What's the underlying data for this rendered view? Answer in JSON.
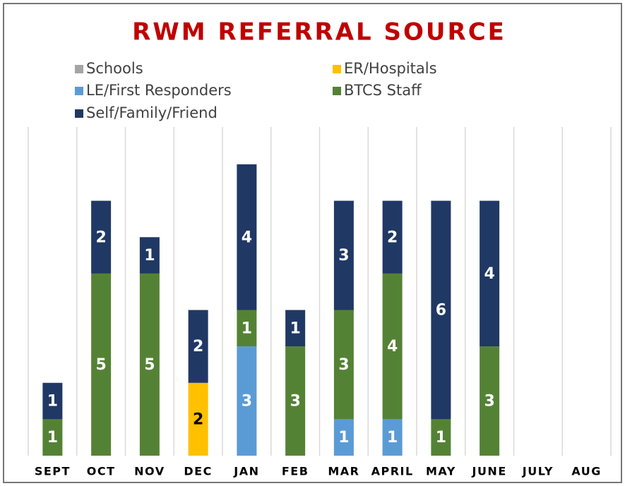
{
  "chart_data": {
    "type": "stacked_bar",
    "title": "RWM REFERRAL SOURCE",
    "categories": [
      "SEPT",
      "OCT",
      "NOV",
      "DEC",
      "JAN",
      "FEB",
      "MAR",
      "APRIL",
      "MAY",
      "JUNE",
      "JULY",
      "AUG"
    ],
    "series": [
      {
        "name": "Schools",
        "color": "#a5a5a5",
        "values": [
          null,
          null,
          null,
          null,
          null,
          null,
          null,
          null,
          null,
          null,
          null,
          null
        ]
      },
      {
        "name": "ER/Hospitals",
        "color": "#ffc000",
        "values": [
          null,
          null,
          null,
          2,
          null,
          null,
          null,
          null,
          null,
          null,
          null,
          null
        ]
      },
      {
        "name": "LE/First Responders",
        "color": "#5b9bd5",
        "values": [
          null,
          null,
          null,
          null,
          3,
          null,
          1,
          1,
          null,
          null,
          null,
          null
        ]
      },
      {
        "name": "BTCS Staff",
        "color": "#548235",
        "values": [
          1,
          5,
          5,
          null,
          1,
          3,
          3,
          4,
          1,
          3,
          null,
          null
        ]
      },
      {
        "name": "Self/Family/Friend",
        "color": "#203864",
        "values": [
          1,
          2,
          1,
          2,
          4,
          1,
          3,
          2,
          6,
          4,
          null,
          null
        ]
      }
    ],
    "grid": true
  }
}
